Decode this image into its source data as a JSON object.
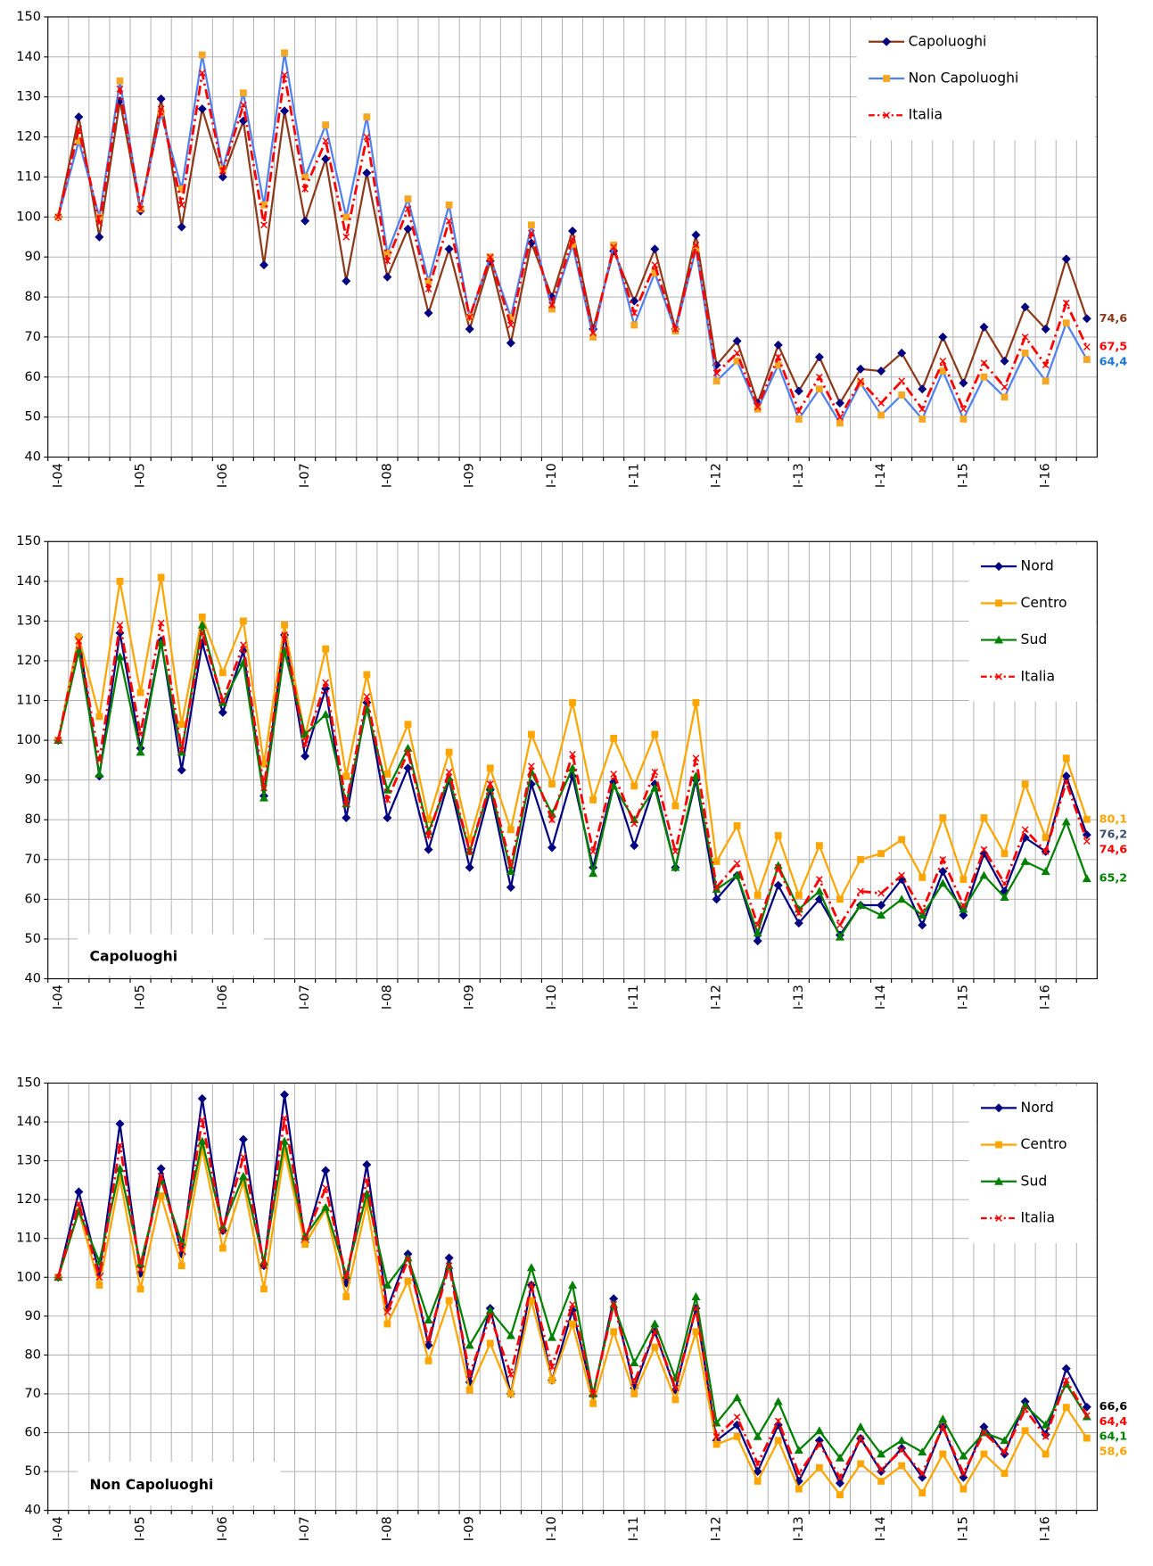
{
  "chart_data": [
    {
      "type": "line",
      "categories": [
        "I-04",
        null,
        null,
        null,
        "I-05",
        null,
        null,
        null,
        "I-06",
        null,
        null,
        null,
        "I-07",
        null,
        null,
        null,
        "I-08",
        null,
        null,
        null,
        "I-09",
        null,
        null,
        null,
        "I-10",
        null,
        null,
        null,
        "I-11",
        null,
        null,
        null,
        "I-12",
        null,
        null,
        null,
        "I-13",
        null,
        null,
        null,
        "I-14",
        null,
        null,
        null,
        "I-15",
        null,
        null,
        null,
        "I-16",
        null,
        null
      ],
      "ylim": [
        40,
        150
      ],
      "yticks": [
        40,
        50,
        60,
        70,
        80,
        90,
        100,
        110,
        120,
        130,
        140,
        150
      ],
      "grid": true,
      "legend": "upper right",
      "series": [
        {
          "name": "Capoluoghi",
          "color": "#8b3a1a",
          "marker_color": "#000080",
          "marker": "diamond",
          "dash": false,
          "last_label": "74,6",
          "label_color": "#8b3a1a",
          "values": [
            100,
            125,
            95,
            129,
            101.5,
            129.5,
            97.5,
            127,
            110,
            124,
            88,
            126.5,
            99,
            114.5,
            84,
            111,
            85,
            97,
            76,
            92,
            72,
            89,
            68.5,
            93.5,
            80,
            96.5,
            72,
            91.5,
            79,
            92,
            72,
            95.5,
            63,
            69,
            53.5,
            68,
            56.5,
            65,
            53.5,
            62,
            61.5,
            66,
            57,
            70,
            58.5,
            72.5,
            64,
            77.5,
            72,
            89.5,
            74.6
          ]
        },
        {
          "name": "Non Capoluoghi",
          "color": "#4f81f0",
          "marker_color": "#f5a623",
          "marker": "square",
          "dash": false,
          "last_label": "64,4",
          "label_color": "#1f77d4",
          "values": [
            100,
            119,
            100,
            134,
            102,
            126,
            107,
            140.5,
            112,
            131,
            103,
            141,
            110,
            123,
            100,
            125,
            91,
            104.5,
            84,
            103,
            75,
            90,
            75,
            98,
            77,
            93,
            70,
            93,
            73,
            86,
            71.5,
            92,
            59,
            64,
            52,
            63,
            49.5,
            57,
            48.5,
            58.5,
            50.5,
            55.5,
            49.5,
            61.5,
            49.5,
            60,
            55,
            66,
            59,
            73.5,
            64.4
          ]
        },
        {
          "name": "Italia",
          "color": "#ff0000",
          "marker_color": "#ff0000",
          "marker": "x",
          "dash": true,
          "last_label": "67,5",
          "label_color": "#ff0000",
          "values": [
            100,
            122,
            98.5,
            132,
            102,
            127,
            103,
            136,
            111.5,
            128,
            98,
            135.5,
            107,
            119,
            95,
            120,
            89,
            102,
            82,
            99,
            75,
            90,
            73,
            96,
            78,
            94.5,
            71,
            92.5,
            76,
            88,
            72,
            93,
            61,
            66,
            52.5,
            65,
            51.5,
            60,
            50,
            59,
            53.5,
            59,
            52,
            64,
            52,
            63.5,
            57.5,
            70,
            63,
            78.5,
            67.5
          ]
        }
      ]
    },
    {
      "type": "line",
      "annotation": "Capoluoghi",
      "categories": [
        "I-04",
        null,
        null,
        null,
        "I-05",
        null,
        null,
        null,
        "I-06",
        null,
        null,
        null,
        "I-07",
        null,
        null,
        null,
        "I-08",
        null,
        null,
        null,
        "I-09",
        null,
        null,
        null,
        "I-10",
        null,
        null,
        null,
        "I-11",
        null,
        null,
        null,
        "I-12",
        null,
        null,
        null,
        "I-13",
        null,
        null,
        null,
        "I-14",
        null,
        null,
        null,
        "I-15",
        null,
        null,
        null,
        "I-16",
        null,
        null
      ],
      "ylim": [
        40,
        150
      ],
      "yticks": [
        40,
        50,
        60,
        70,
        80,
        90,
        100,
        110,
        120,
        130,
        140,
        150
      ],
      "grid": true,
      "legend": "upper right",
      "series": [
        {
          "name": "Nord",
          "color": "#000080",
          "marker_color": "#000080",
          "marker": "diamond",
          "dash": false,
          "last_label": "76,2",
          "label_color": "#3a5070",
          "values": [
            100,
            126,
            91,
            127,
            98,
            125,
            92.5,
            124.5,
            107,
            122.5,
            86,
            126.5,
            96,
            113,
            80.5,
            109.5,
            80.5,
            93,
            72.5,
            90,
            68,
            87.5,
            63,
            89,
            73,
            91,
            68,
            89.5,
            73.5,
            89,
            68,
            90,
            60,
            66,
            49.5,
            63.5,
            54,
            60,
            51,
            58.5,
            58.5,
            65,
            53.5,
            67,
            56,
            71.5,
            62,
            75.5,
            72,
            91,
            76.2
          ]
        },
        {
          "name": "Centro",
          "color": "#ffa500",
          "marker_color": "#ffa500",
          "marker": "square",
          "dash": false,
          "last_label": "80,1",
          "label_color": "#ffa500",
          "values": [
            100,
            126,
            106,
            140,
            112,
            141,
            104,
            131,
            117,
            130,
            94,
            129,
            101,
            123,
            91,
            116.5,
            91.5,
            104,
            80,
            97,
            75,
            93,
            77.5,
            101.5,
            89,
            109.5,
            85,
            100.5,
            88.5,
            101.5,
            83.5,
            109.5,
            69.5,
            78.5,
            61,
            76,
            61,
            73.5,
            60,
            70,
            71.5,
            75,
            65.5,
            80.5,
            65,
            80.5,
            71.5,
            89,
            75.5,
            95.5,
            80.1
          ]
        },
        {
          "name": "Sud",
          "color": "#008000",
          "marker_color": "#008000",
          "marker": "triangle",
          "dash": false,
          "last_label": "65,2",
          "label_color": "#008000",
          "values": [
            100,
            122.5,
            91.5,
            121,
            97,
            124.5,
            97,
            129,
            109.5,
            119.5,
            85.5,
            122.5,
            101.5,
            106.5,
            84,
            108,
            87.5,
            98,
            77,
            90.5,
            72,
            88.5,
            67,
            92,
            81.5,
            93,
            66.5,
            88.5,
            80,
            88,
            68,
            91,
            62.5,
            66,
            51.5,
            68.5,
            57.5,
            62,
            50.5,
            58.5,
            56,
            60,
            56,
            64,
            57.5,
            66,
            60.5,
            69.5,
            67,
            79.5,
            65.2
          ]
        },
        {
          "name": "Italia",
          "color": "#ff0000",
          "marker_color": "#ff0000",
          "marker": "x",
          "dash": true,
          "last_label": "74,6",
          "label_color": "#ff0000",
          "values": [
            100,
            125,
            95,
            129,
            101.5,
            129.5,
            97.5,
            127,
            110,
            124,
            88,
            126.5,
            99,
            114.5,
            84,
            111,
            85,
            97,
            76,
            92,
            72,
            89,
            68.5,
            93.5,
            80,
            96.5,
            72,
            91.5,
            79,
            92,
            72,
            95.5,
            63,
            69,
            53.5,
            68,
            56.5,
            65,
            53.5,
            62,
            61.5,
            66,
            57,
            70,
            58.5,
            72.5,
            64,
            77.5,
            72,
            89.5,
            74.6
          ]
        }
      ]
    },
    {
      "type": "line",
      "annotation": "Non Capoluoghi",
      "categories": [
        "I-04",
        null,
        null,
        null,
        "I-05",
        null,
        null,
        null,
        "I-06",
        null,
        null,
        null,
        "I-07",
        null,
        null,
        null,
        "I-08",
        null,
        null,
        null,
        "I-09",
        null,
        null,
        null,
        "I-10",
        null,
        null,
        null,
        "I-11",
        null,
        null,
        null,
        "I-12",
        null,
        null,
        null,
        "I-13",
        null,
        null,
        null,
        "I-14",
        null,
        null,
        null,
        "I-15",
        null,
        null,
        null,
        "I-16",
        null,
        null
      ],
      "ylim": [
        40,
        150
      ],
      "yticks": [
        40,
        50,
        60,
        70,
        80,
        90,
        100,
        110,
        120,
        130,
        140,
        150
      ],
      "grid": true,
      "legend": "upper right",
      "series": [
        {
          "name": "Nord",
          "color": "#000080",
          "marker_color": "#000080",
          "marker": "diamond",
          "dash": false,
          "last_label": "66,6",
          "label_color": "#000000",
          "values": [
            100,
            122,
            101,
            139.5,
            101,
            128,
            106,
            146,
            112,
            135.5,
            103,
            147,
            109,
            127.5,
            98.5,
            129,
            92,
            106,
            82.5,
            105,
            73,
            92,
            70,
            98,
            73.5,
            91.5,
            69.5,
            94.5,
            71.5,
            86,
            71,
            92,
            58,
            62,
            50,
            62,
            47.5,
            58,
            47,
            58.5,
            50,
            56,
            48.5,
            61.5,
            48.5,
            61.5,
            54.5,
            68,
            59.5,
            76.5,
            66.6
          ]
        },
        {
          "name": "Centro",
          "color": "#ffa500",
          "marker_color": "#ffa500",
          "marker": "square",
          "dash": false,
          "last_label": "58,6",
          "label_color": "#ffa500",
          "values": [
            100,
            117,
            98,
            125.5,
            97,
            121,
            103,
            133,
            107.5,
            124.5,
            97,
            132.5,
            108.5,
            117.5,
            95,
            119,
            88,
            99,
            78.5,
            94,
            71,
            83,
            70,
            94,
            73.5,
            88,
            67.5,
            86,
            70,
            82,
            68.5,
            86,
            57,
            59,
            47.5,
            58,
            45.5,
            51,
            44,
            52,
            47.5,
            51.5,
            44.5,
            54.5,
            45.5,
            54.5,
            49.5,
            60.5,
            54.5,
            66.5,
            58.6
          ]
        },
        {
          "name": "Sud",
          "color": "#008000",
          "marker_color": "#008000",
          "marker": "triangle",
          "dash": false,
          "last_label": "64,1",
          "label_color": "#008000",
          "values": [
            100,
            117,
            104,
            128,
            103.5,
            125,
            109,
            135,
            113,
            126,
            104,
            135,
            110.5,
            118,
            100.5,
            121.5,
            98,
            105,
            89,
            103,
            82.5,
            91.5,
            85,
            102.5,
            84.5,
            98,
            70,
            93,
            78,
            88,
            74,
            95,
            62.5,
            69,
            59,
            68,
            55.5,
            60.5,
            53.5,
            61.5,
            54.5,
            58,
            55,
            63.5,
            54,
            60,
            58,
            67,
            62,
            72.5,
            64.1
          ]
        },
        {
          "name": "Italia",
          "color": "#ff0000",
          "marker_color": "#ff0000",
          "marker": "x",
          "dash": true,
          "last_label": "64,4",
          "label_color": "#ff0000",
          "values": [
            100,
            119,
            100,
            134,
            102,
            126,
            107,
            140.5,
            112,
            131,
            103,
            141,
            110,
            123,
            100,
            125,
            91,
            104.5,
            84,
            103,
            75,
            90,
            75,
            98,
            77,
            93,
            70,
            93,
            73,
            86,
            71.5,
            92,
            59,
            64,
            52,
            63,
            49.5,
            57,
            48.5,
            58.5,
            50.5,
            55.5,
            49.5,
            61.5,
            49.5,
            60,
            55,
            66,
            59,
            73.5,
            64.4
          ]
        }
      ]
    }
  ]
}
